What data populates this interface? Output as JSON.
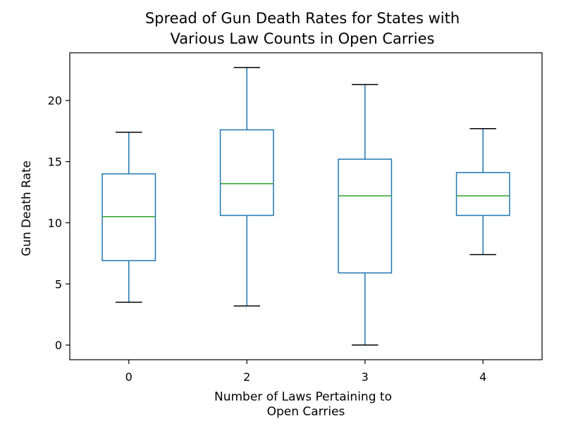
{
  "chart_data": {
    "type": "box",
    "title_lines": [
      "Spread of Gun Death Rates for States with",
      "Various Law Counts in Open Carries"
    ],
    "xlabel_lines": [
      "Number of Laws Pertaining to",
      "Open Carries"
    ],
    "ylabel": "Gun Death Rate",
    "ylim": [
      -1.2,
      23.9
    ],
    "yticks": [
      0,
      5,
      10,
      15,
      20
    ],
    "categories": [
      "0",
      "2",
      "3",
      "4"
    ],
    "boxes": [
      {
        "category": "0",
        "whisker_low": 3.5,
        "q1": 6.9,
        "median": 10.5,
        "q3": 14.0,
        "whisker_high": 17.4
      },
      {
        "category": "2",
        "whisker_low": 3.2,
        "q1": 10.6,
        "median": 13.2,
        "q3": 17.6,
        "whisker_high": 22.7
      },
      {
        "category": "3",
        "whisker_low": 0.0,
        "q1": 5.9,
        "median": 12.2,
        "q3": 15.2,
        "whisker_high": 21.3
      },
      {
        "category": "4",
        "whisker_low": 7.4,
        "q1": 10.6,
        "median": 12.2,
        "q3": 14.1,
        "whisker_high": 17.7
      }
    ],
    "colors": {
      "box": "#1f77b4",
      "median": "#2ca02c",
      "cap": "#000000"
    }
  }
}
